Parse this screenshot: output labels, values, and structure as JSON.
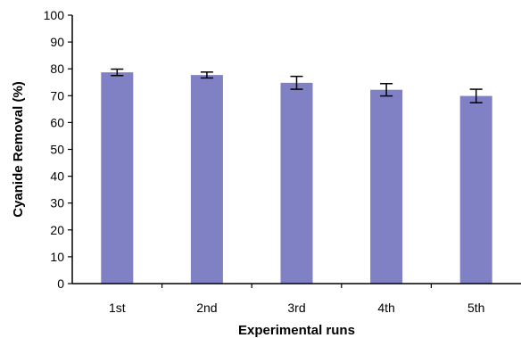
{
  "chart_data": {
    "type": "bar",
    "categories": [
      "1st",
      "2nd",
      "3rd",
      "4th",
      "5th"
    ],
    "values": [
      78.7,
      77.7,
      74.8,
      72.2,
      69.9
    ],
    "errors": [
      1.2,
      1.1,
      2.4,
      2.3,
      2.5
    ],
    "xlabel": "Experimental runs",
    "ylabel": "Cyanide Removal (%)",
    "ylim": [
      0,
      100
    ],
    "yticks": [
      0,
      10,
      20,
      30,
      40,
      50,
      60,
      70,
      80,
      90,
      100
    ],
    "grid": false,
    "legend": "none",
    "bar_color": "#8080c4"
  }
}
